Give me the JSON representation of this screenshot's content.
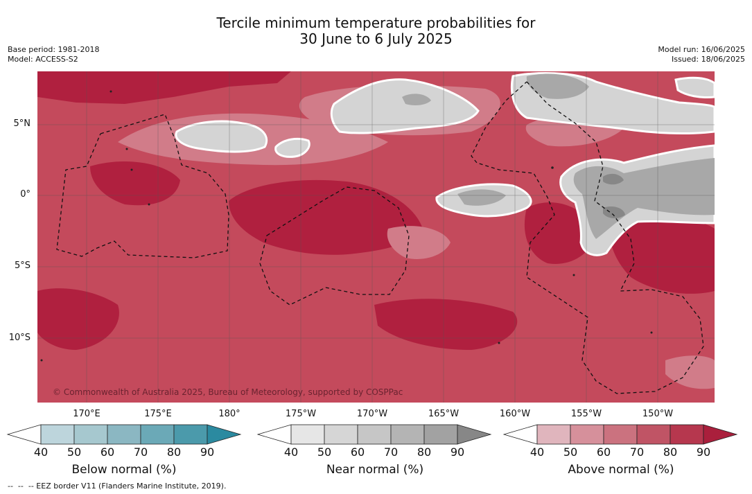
{
  "title": {
    "line1": "Tercile minimum temperature probabilities for",
    "line2": "30 June to 6 July 2025"
  },
  "meta_left": {
    "base_period": "Base period: 1981-2018",
    "model": "Model: ACCESS-S2"
  },
  "meta_right": {
    "model_run": "Model run: 16/06/2025",
    "issued": "Issued: 18/06/2025"
  },
  "map": {
    "latitude_labels": [
      "5°N",
      "0°",
      "5°S",
      "10°S"
    ],
    "longitude_labels": [
      "170°E",
      "175°E",
      "180°",
      "175°W",
      "170°W",
      "165°W",
      "160°W",
      "155°W",
      "150°W"
    ],
    "copyright": "© Commonwealth of Australia 2025, Bureau of Meteorology, supported by COSPPac",
    "background_color": "#c44a5c"
  },
  "colorbars": [
    {
      "name": "below",
      "label": "Below normal (%)",
      "ticks": [
        "40",
        "50",
        "60",
        "70",
        "80",
        "90"
      ],
      "colors": [
        "#bdd5dc",
        "#a6c8cf",
        "#8bb7c2",
        "#6ba9b7",
        "#4b9aab",
        "#2b8aa0"
      ]
    },
    {
      "name": "near",
      "label": "Near normal (%)",
      "ticks": [
        "40",
        "50",
        "60",
        "70",
        "80",
        "90"
      ],
      "colors": [
        "#e6e6e6",
        "#d6d6d6",
        "#c6c6c6",
        "#b4b4b4",
        "#a2a2a2",
        "#878787"
      ]
    },
    {
      "name": "above",
      "label": "Above normal (%)",
      "ticks": [
        "40",
        "50",
        "60",
        "70",
        "80",
        "90"
      ],
      "colors": [
        "#e0b5bd",
        "#d6909b",
        "#cb727f",
        "#c05465",
        "#b6374e",
        "#aa1f3c"
      ]
    }
  ],
  "footnote": "--  --  -- EEZ border V11 (Flanders Marine Institute, 2019)."
}
